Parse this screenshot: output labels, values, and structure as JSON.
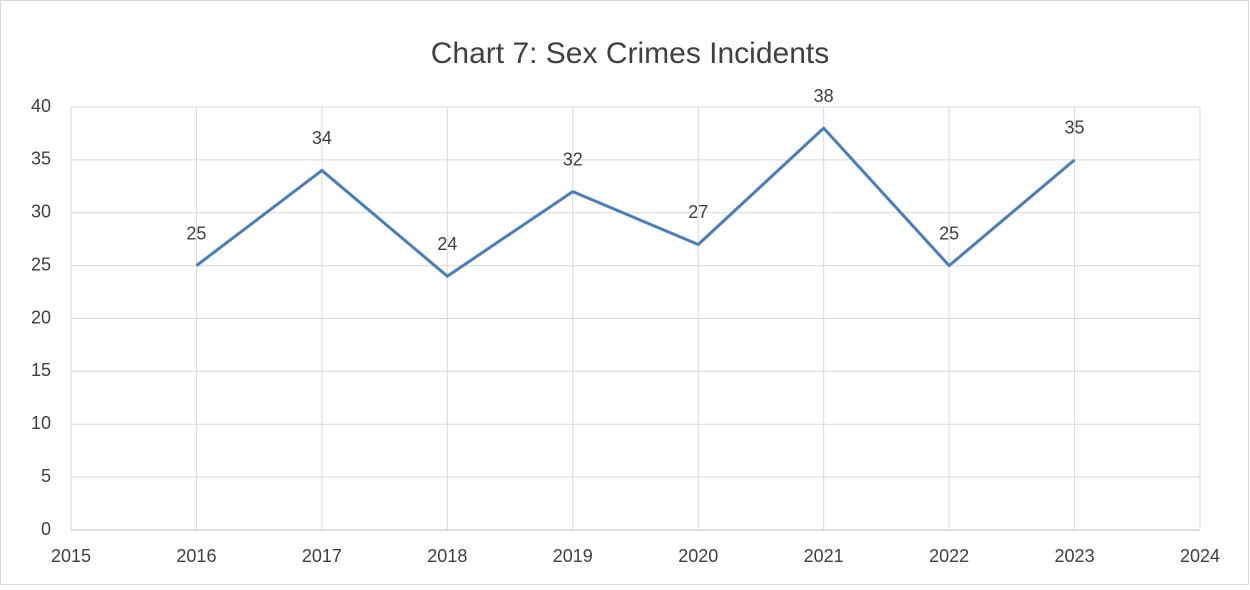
{
  "chart_data": {
    "type": "line",
    "title": "Chart 7:  Sex Crimes Incidents",
    "x": [
      2016,
      2017,
      2018,
      2019,
      2020,
      2021,
      2022,
      2023
    ],
    "series": [
      {
        "name": "Sex Crimes Incidents",
        "color": "#4a7ebb",
        "values": [
          25,
          34,
          24,
          32,
          27,
          38,
          25,
          35
        ]
      }
    ],
    "xlim": [
      2015,
      2024
    ],
    "xticks": [
      2015,
      2016,
      2017,
      2018,
      2019,
      2020,
      2021,
      2022,
      2023,
      2024
    ],
    "ylim": [
      0,
      40
    ],
    "yticks": [
      0,
      5,
      10,
      15,
      20,
      25,
      30,
      35,
      40
    ],
    "grid": true,
    "data_labels": true
  }
}
